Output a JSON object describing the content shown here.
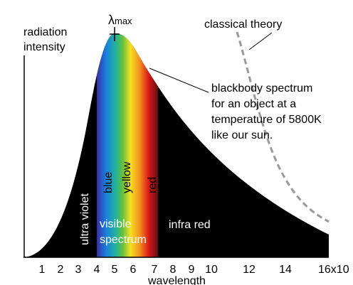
{
  "axis": {
    "y_label": [
      "radiation",
      "intensity"
    ],
    "x_label": "wavelength",
    "x_ticks": [
      "1",
      "2",
      "3",
      "4",
      "5",
      "6",
      "7",
      "8",
      "9",
      "10",
      "12",
      "14",
      "16x10"
    ]
  },
  "peak": {
    "symbol": "λ",
    "subscript": "max"
  },
  "classical": "classical theory",
  "blackbody": [
    "blackbody spectrum",
    "for an object at a",
    "temperature of 5800K",
    "like our sun."
  ],
  "bands": {
    "uv": "ultra violet",
    "blue": "blue",
    "yellow": "yellow",
    "red": "red",
    "visible": [
      "visible",
      "spectrum"
    ],
    "ir": "infra red"
  }
}
